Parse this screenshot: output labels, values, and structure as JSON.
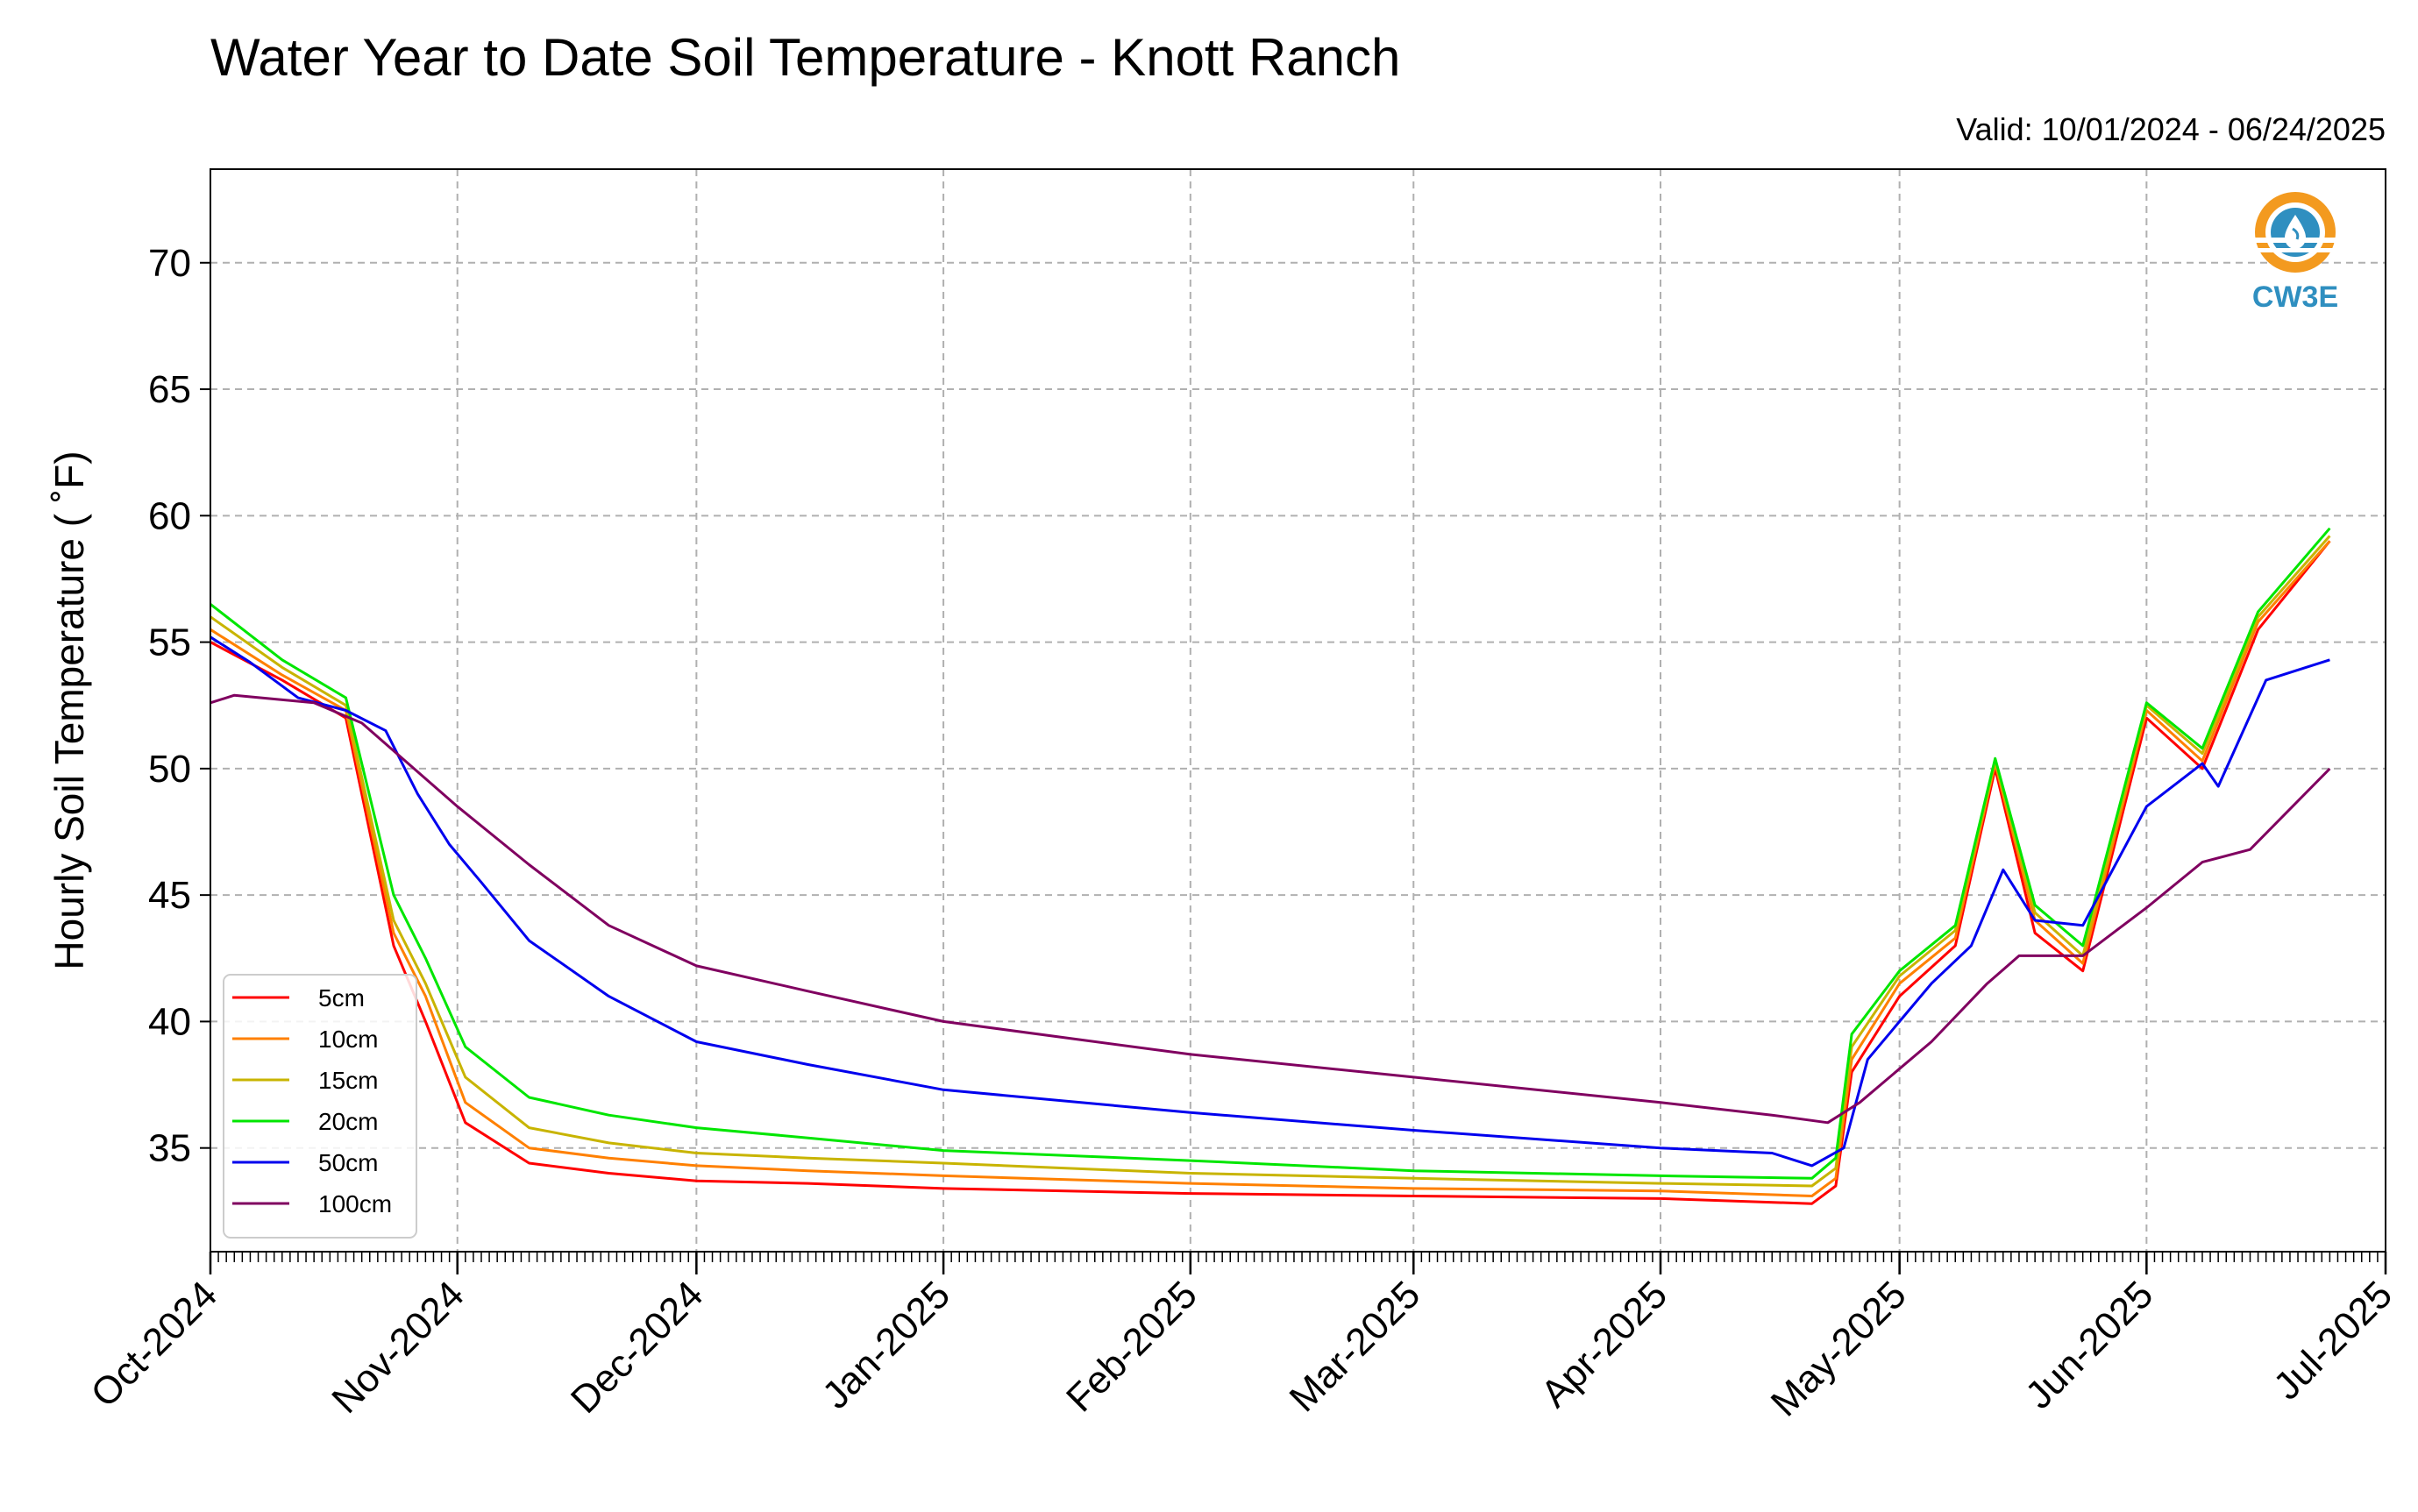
{
  "chart_data": {
    "type": "line",
    "title": "Water Year to Date Soil Temperature - Knott Ranch",
    "valid_label": "Valid: 10/01/2024 - 06/24/2025",
    "ylabel": "Hourly Soil Temperature ( ˚F)",
    "xlim": [
      "2024-10-01",
      "2025-07-01"
    ],
    "ylim": [
      30.9,
      73.7
    ],
    "grid": true,
    "legend_position": "lower-left",
    "yticks": [
      35,
      40,
      45,
      50,
      55,
      60,
      65,
      70
    ],
    "xticks": [
      {
        "date": "2024-10-01",
        "label": "Oct-2024"
      },
      {
        "date": "2024-11-01",
        "label": "Nov-2024"
      },
      {
        "date": "2024-12-01",
        "label": "Dec-2024"
      },
      {
        "date": "2025-01-01",
        "label": "Jan-2025"
      },
      {
        "date": "2025-02-01",
        "label": "Feb-2025"
      },
      {
        "date": "2025-03-01",
        "label": "Mar-2025"
      },
      {
        "date": "2025-04-01",
        "label": "Apr-2025"
      },
      {
        "date": "2025-05-01",
        "label": "May-2025"
      },
      {
        "date": "2025-06-01",
        "label": "Jun-2025"
      },
      {
        "date": "2025-07-01",
        "label": "Jul-2025"
      }
    ],
    "series": [
      {
        "name": "5cm",
        "color": "#ff0000",
        "x": [
          "2024-10-01",
          "2024-10-10",
          "2024-10-18",
          "2024-10-24",
          "2024-10-28",
          "2024-11-02",
          "2024-11-10",
          "2024-11-20",
          "2024-12-01",
          "2024-12-15",
          "2025-01-01",
          "2025-02-01",
          "2025-03-01",
          "2025-04-01",
          "2025-04-20",
          "2025-04-23",
          "2025-04-25",
          "2025-05-01",
          "2025-05-08",
          "2025-05-13",
          "2025-05-18",
          "2025-05-24",
          "2025-06-01",
          "2025-06-08",
          "2025-06-15",
          "2025-06-24"
        ],
        "y": [
          55,
          53.5,
          52,
          43,
          40,
          36,
          34.4,
          34,
          33.7,
          33.6,
          33.4,
          33.2,
          33.1,
          33,
          32.8,
          33.5,
          38,
          41,
          43,
          50,
          43.5,
          42,
          52,
          50,
          55.5,
          59
        ]
      },
      {
        "name": "10cm",
        "color": "#ff8000",
        "x": [
          "2024-10-01",
          "2024-10-10",
          "2024-10-18",
          "2024-10-24",
          "2024-10-28",
          "2024-11-02",
          "2024-11-10",
          "2024-11-20",
          "2024-12-01",
          "2024-12-15",
          "2025-01-01",
          "2025-02-01",
          "2025-03-01",
          "2025-04-01",
          "2025-04-20",
          "2025-04-23",
          "2025-04-25",
          "2025-05-01",
          "2025-05-08",
          "2025-05-13",
          "2025-05-18",
          "2025-05-24",
          "2025-06-01",
          "2025-06-08",
          "2025-06-15",
          "2025-06-24"
        ],
        "y": [
          55.5,
          53.7,
          52.3,
          43.5,
          41,
          36.8,
          35,
          34.6,
          34.3,
          34.1,
          33.9,
          33.6,
          33.4,
          33.3,
          33.1,
          33.8,
          38.5,
          41.5,
          43.3,
          50.2,
          44,
          42.3,
          52.3,
          50.3,
          55.8,
          59
        ]
      },
      {
        "name": "15cm",
        "color": "#c8b400",
        "x": [
          "2024-10-01",
          "2024-10-10",
          "2024-10-18",
          "2024-10-24",
          "2024-10-28",
          "2024-11-02",
          "2024-11-10",
          "2024-11-20",
          "2024-12-01",
          "2024-12-15",
          "2025-01-01",
          "2025-02-01",
          "2025-03-01",
          "2025-04-01",
          "2025-04-20",
          "2025-04-23",
          "2025-04-25",
          "2025-05-01",
          "2025-05-08",
          "2025-05-13",
          "2025-05-18",
          "2025-05-24",
          "2025-06-01",
          "2025-06-08",
          "2025-06-15",
          "2025-06-24"
        ],
        "y": [
          56,
          54,
          52.5,
          44,
          41.5,
          37.8,
          35.8,
          35.2,
          34.8,
          34.6,
          34.4,
          34,
          33.8,
          33.6,
          33.5,
          34.2,
          39,
          41.8,
          43.6,
          50.3,
          44.3,
          42.6,
          52.5,
          50.6,
          56,
          59.2
        ]
      },
      {
        "name": "20cm",
        "color": "#00e600",
        "x": [
          "2024-10-01",
          "2024-10-10",
          "2024-10-18",
          "2024-10-24",
          "2024-10-28",
          "2024-11-02",
          "2024-11-10",
          "2024-11-20",
          "2024-12-01",
          "2024-12-15",
          "2025-01-01",
          "2025-02-01",
          "2025-03-01",
          "2025-04-01",
          "2025-04-20",
          "2025-04-23",
          "2025-04-25",
          "2025-05-01",
          "2025-05-08",
          "2025-05-13",
          "2025-05-18",
          "2025-05-24",
          "2025-06-01",
          "2025-06-08",
          "2025-06-15",
          "2025-06-24"
        ],
        "y": [
          56.5,
          54.3,
          52.8,
          45,
          42.5,
          39,
          37,
          36.3,
          35.8,
          35.4,
          34.9,
          34.5,
          34.1,
          33.9,
          33.8,
          34.6,
          39.5,
          42,
          43.8,
          50.4,
          44.6,
          43,
          52.6,
          50.8,
          56.2,
          59.5
        ]
      },
      {
        "name": "50cm",
        "color": "#0000ee",
        "x": [
          "2024-10-01",
          "2024-10-06",
          "2024-10-12",
          "2024-10-18",
          "2024-10-23",
          "2024-10-27",
          "2024-10-31",
          "2024-11-04",
          "2024-11-10",
          "2024-11-20",
          "2024-12-01",
          "2024-12-15",
          "2025-01-01",
          "2025-02-01",
          "2025-03-01",
          "2025-04-01",
          "2025-04-15",
          "2025-04-20",
          "2025-04-24",
          "2025-04-27",
          "2025-05-01",
          "2025-05-05",
          "2025-05-10",
          "2025-05-14",
          "2025-05-18",
          "2025-05-24",
          "2025-06-01",
          "2025-06-08",
          "2025-06-10",
          "2025-06-16",
          "2025-06-24"
        ],
        "y": [
          55.2,
          54.2,
          52.8,
          52.3,
          51.5,
          49,
          47,
          45.5,
          43.2,
          41,
          39.2,
          38.3,
          37.3,
          36.4,
          35.7,
          35,
          34.8,
          34.3,
          35,
          38.5,
          40,
          41.5,
          43,
          46,
          44,
          43.8,
          48.5,
          50.2,
          49.3,
          53.5,
          54.3
        ]
      },
      {
        "name": "100cm",
        "color": "#800060",
        "x": [
          "2024-10-01",
          "2024-10-04",
          "2024-10-14",
          "2024-10-20",
          "2024-11-01",
          "2024-11-10",
          "2024-11-20",
          "2024-12-01",
          "2024-12-15",
          "2025-01-01",
          "2025-02-01",
          "2025-03-01",
          "2025-04-01",
          "2025-04-15",
          "2025-04-22",
          "2025-04-26",
          "2025-05-05",
          "2025-05-12",
          "2025-05-16",
          "2025-05-24",
          "2025-06-01",
          "2025-06-08",
          "2025-06-14",
          "2025-06-24"
        ],
        "y": [
          52.6,
          52.9,
          52.6,
          51.8,
          48.5,
          46.2,
          43.8,
          42.2,
          41.2,
          40,
          38.7,
          37.8,
          36.8,
          36.3,
          36,
          36.8,
          39.2,
          41.5,
          42.6,
          42.6,
          44.5,
          46.3,
          46.8,
          50
        ]
      }
    ]
  }
}
